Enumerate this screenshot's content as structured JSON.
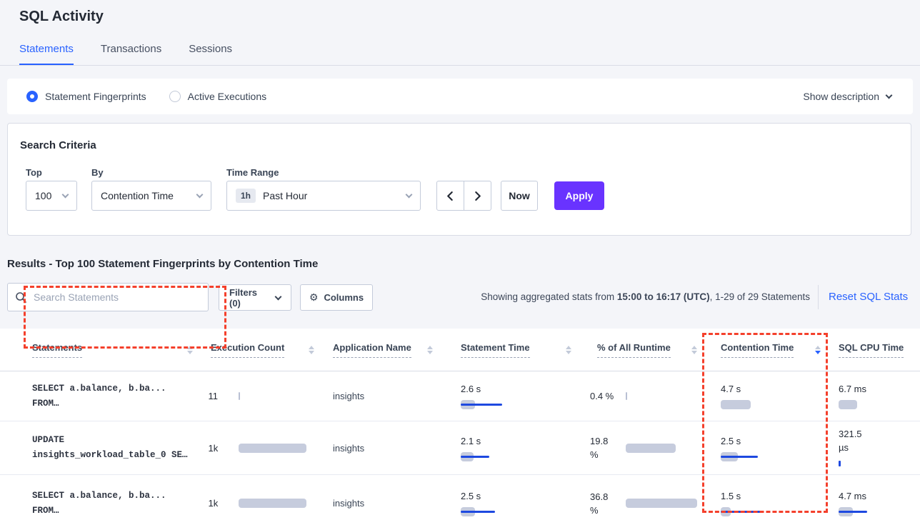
{
  "page": {
    "title": "SQL Activity"
  },
  "tabs": [
    {
      "label": "Statements",
      "active": true
    },
    {
      "label": "Transactions",
      "active": false
    },
    {
      "label": "Sessions",
      "active": false
    }
  ],
  "view_toggle": {
    "options": [
      {
        "label": "Statement Fingerprints",
        "selected": true
      },
      {
        "label": "Active Executions",
        "selected": false
      }
    ],
    "show_description": "Show description"
  },
  "search_criteria": {
    "title": "Search Criteria",
    "top": {
      "label": "Top",
      "value": "100"
    },
    "by": {
      "label": "By",
      "value": "Contention Time"
    },
    "time_range": {
      "label": "Time Range",
      "badge": "1h",
      "value": "Past Hour"
    },
    "now_label": "Now",
    "apply_label": "Apply"
  },
  "results": {
    "heading": "Results - Top 100 Statement Fingerprints by Contention Time",
    "search_placeholder": "Search Statements",
    "filters_label": "Filters (0)",
    "columns_label": "Columns",
    "showing_prefix": "Showing aggregated stats from ",
    "showing_bold": "15:00 to 16:17 (UTC)",
    "showing_suffix": ", 1-29 of 29 Statements",
    "reset_link": "Reset SQL Stats"
  },
  "table": {
    "headers": [
      {
        "label": "Statements"
      },
      {
        "label": "Execution Count"
      },
      {
        "label": "Application Name"
      },
      {
        "label": "Statement Time"
      },
      {
        "label": "% of All Runtime"
      },
      {
        "label": "Contention Time",
        "sort_desc": true
      },
      {
        "label": "SQL CPU Time"
      }
    ],
    "rows": [
      {
        "statement": [
          "SELECT a.balance, b.ba...",
          "FROM…"
        ],
        "exec": "11",
        "exec_bar": {
          "tick": "gray"
        },
        "app": "insights",
        "stmt_time": "2.6 s",
        "stmt_bar": {
          "gray": 20,
          "blue": 58
        },
        "runtime": [
          "0.4 %"
        ],
        "runtime_bar": {
          "tick": "gray"
        },
        "contention": "4.7 s",
        "contention_bar": {
          "gray": 42
        },
        "cpu": [
          "6.7 ms"
        ],
        "cpu_bar": {
          "gray": 26
        }
      },
      {
        "statement": [
          "UPDATE",
          "insights_workload_table_0 SE…"
        ],
        "exec": "1k",
        "exec_bar": {
          "gray": 95
        },
        "app": "insights",
        "stmt_time": "2.1 s",
        "stmt_bar": {
          "gray": 18,
          "blue": 40
        },
        "runtime": [
          "19.8",
          "%"
        ],
        "runtime_bar": {
          "gray": 70
        },
        "contention": "2.5 s",
        "contention_bar": {
          "gray": 24,
          "blue": 52
        },
        "cpu": [
          "321.5",
          "µs"
        ],
        "cpu_bar": {
          "tick": "blue"
        }
      },
      {
        "statement": [
          "SELECT a.balance, b.ba...",
          "FROM…"
        ],
        "exec": "1k",
        "exec_bar": {
          "gray": 95
        },
        "app": "insights",
        "stmt_time": "2.5 s",
        "stmt_bar": {
          "gray": 20,
          "blue": 48
        },
        "runtime": [
          "36.8",
          "%"
        ],
        "runtime_bar": {
          "gray": 100
        },
        "contention": "1.5 s",
        "contention_bar": {
          "gray": 14,
          "blue": 56
        },
        "cpu": [
          "4.7 ms"
        ],
        "cpu_bar": {
          "gray": 20,
          "blue": 40
        }
      }
    ]
  },
  "colors": {
    "accent_blue": "#2962ff",
    "bar_blue": "#1e49e0",
    "bar_gray": "#c6ccdd",
    "apply_purple": "#6933ff",
    "annotation_red": "#f4402c"
  }
}
